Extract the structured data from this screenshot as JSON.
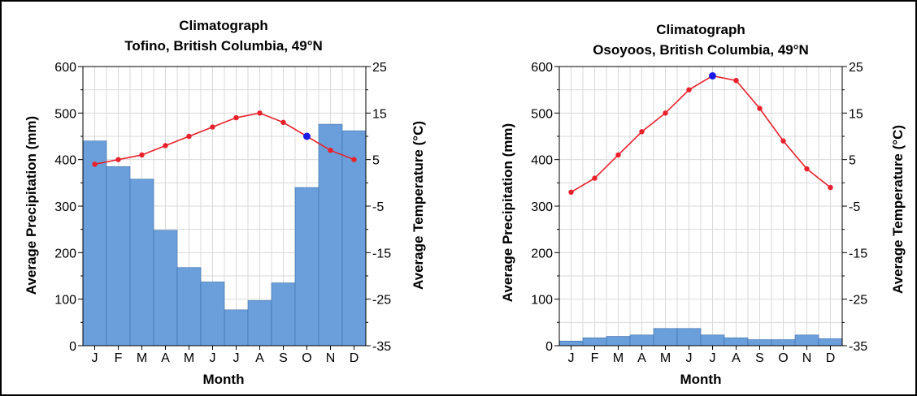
{
  "chart_data": [
    {
      "type": "bar",
      "title": "Climatograph",
      "subtitle": "Tofino, British Columbia, 49°N",
      "xlabel": "Month",
      "ylabel": "Average Precipitation (mm)",
      "y2label": "Average Temperature (°C)",
      "categories": [
        "J",
        "F",
        "M",
        "A",
        "M",
        "J",
        "J",
        "A",
        "S",
        "O",
        "N",
        "D"
      ],
      "ylim": [
        0,
        600
      ],
      "y2lim": [
        -35,
        25
      ],
      "yticks": [
        0,
        100,
        200,
        300,
        400,
        500,
        600
      ],
      "y2ticks": [
        -35,
        -25,
        -15,
        -5,
        5,
        15,
        25
      ],
      "y2ticklabels": [
        "-35",
        "-25",
        "-15",
        "-5",
        "5",
        "15",
        "25"
      ],
      "grid": true,
      "colors": {
        "bars": "#6a9fdb",
        "line": "#e8212b",
        "highlight": "#1a1ae6"
      },
      "series": [
        {
          "kind": "bar",
          "axis": "left",
          "values": [
            440,
            385,
            358,
            248,
            168,
            137,
            77,
            97,
            135,
            340,
            476,
            462
          ]
        },
        {
          "kind": "line",
          "axis": "right",
          "values": [
            4,
            5,
            6,
            8,
            10,
            12,
            14,
            15,
            13,
            10,
            7,
            5
          ],
          "highlight_index": 9
        }
      ]
    },
    {
      "type": "bar",
      "title": "Climatograph",
      "subtitle": "Osoyoos, British Columbia, 49°N",
      "xlabel": "Month",
      "ylabel": "Average Precipitation (mm)",
      "y2label": "Average Temperature (°C)",
      "categories": [
        "J",
        "F",
        "M",
        "A",
        "M",
        "J",
        "J",
        "A",
        "S",
        "O",
        "N",
        "D"
      ],
      "ylim": [
        0,
        600
      ],
      "y2lim": [
        -35,
        25
      ],
      "yticks": [
        0,
        100,
        200,
        300,
        400,
        500,
        600
      ],
      "y2ticks": [
        -35,
        -25,
        -15,
        -5,
        5,
        15,
        25
      ],
      "y2ticklabels": [
        "-35",
        "-25",
        "-15",
        "-5",
        "5",
        "15",
        "25"
      ],
      "grid": true,
      "colors": {
        "bars": "#6a9fdb",
        "line": "#e8212b",
        "highlight": "#1a1ae6"
      },
      "series": [
        {
          "kind": "bar",
          "axis": "left",
          "values": [
            10,
            17,
            20,
            23,
            37,
            37,
            23,
            17,
            13,
            13,
            23,
            15
          ]
        },
        {
          "kind": "line",
          "axis": "right",
          "values": [
            -2,
            1,
            6,
            11,
            15,
            20,
            23,
            22,
            16,
            9,
            3,
            -1
          ],
          "highlight_index": 6
        }
      ]
    }
  ]
}
